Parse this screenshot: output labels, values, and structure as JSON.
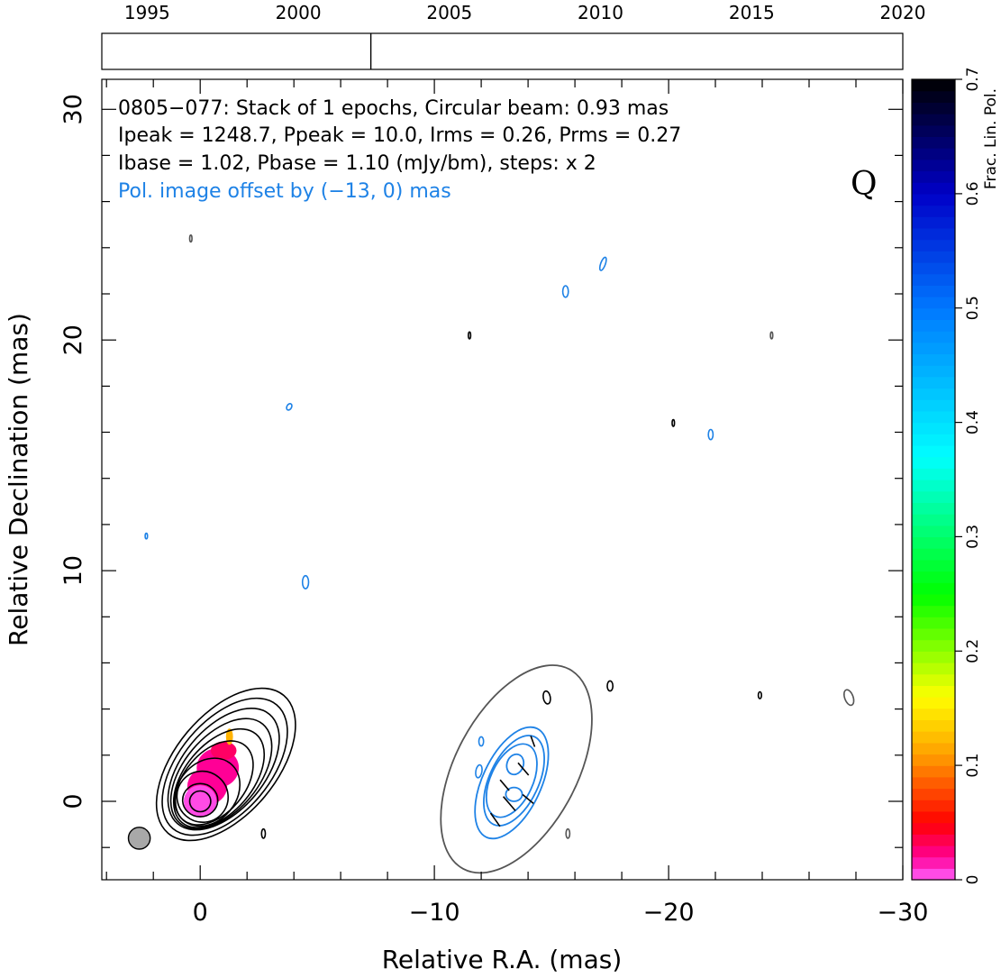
{
  "chart_data": {
    "type": "contour",
    "source": "0805−077",
    "header": {
      "line1": "0805−077: Stack of 1 epochs, Circular beam: 0.93 mas",
      "line2": "Ipeak = 1248.7, Ppeak = 10.0, Irms = 0.26, Prms = 0.27",
      "line3": "Ibase = 1.02, Pbase = 1.10 (mJy/bm), steps: x 2",
      "line4": "Pol. image offset by (−13, 0) mas"
    },
    "quality_flag": "Q",
    "xlabel": "Relative R.A. (mas)",
    "ylabel": "Relative Declination (mas)",
    "colorbar_label": "Frac. Lin. Pol.",
    "xlim": [
      4.2,
      -30
    ],
    "ylim": [
      -3.4,
      31.3
    ],
    "x_ticks": [
      0,
      -10,
      -20,
      -30
    ],
    "x_tick_labels": [
      "0",
      "−10",
      "−20",
      "−30"
    ],
    "y_ticks": [
      0,
      10,
      20,
      30
    ],
    "y_tick_labels": [
      "0",
      "10",
      "20",
      "30"
    ],
    "colorbar": {
      "range": [
        0,
        0.7
      ],
      "ticks": [
        0,
        0.1,
        0.2,
        0.3,
        0.4,
        0.5,
        0.6,
        0.7
      ],
      "tick_labels": [
        "0",
        "0.1",
        "0.2",
        "0.3",
        "0.4",
        "0.5",
        "0.6",
        "0.7"
      ]
    },
    "epoch_axis": {
      "range": [
        1993.5,
        2020
      ],
      "ticks": [
        1995,
        2000,
        2005,
        2010,
        2015,
        2020
      ],
      "tick_labels": [
        "1995",
        "2000",
        "2005",
        "2010",
        "2015",
        "2020"
      ],
      "epochs": [
        2002.4
      ]
    },
    "beam_fwhm_mas": 0.93,
    "colors": {
      "stokes_i": "#000000",
      "pol_intensity": "#1e82e6",
      "pol_outer": "#555555",
      "beam_fill": "#a8a8a8"
    },
    "core_contours": [
      {
        "x": 0,
        "y": 0,
        "rx": 0.45,
        "ry": 0.45,
        "rot": 0
      },
      {
        "x": 0,
        "y": 0.05,
        "rx": 0.75,
        "ry": 0.72,
        "rot": 0
      },
      {
        "x": -0.1,
        "y": 0.2,
        "rx": 1.1,
        "ry": 1.1,
        "rot": 40
      },
      {
        "x": -0.3,
        "y": 0.4,
        "rx": 1.25,
        "ry": 1.6,
        "rot": 40
      },
      {
        "x": -0.6,
        "y": 0.8,
        "rx": 1.3,
        "ry": 2.1,
        "rot": 40
      },
      {
        "x": -0.8,
        "y": 1.0,
        "rx": 1.45,
        "ry": 2.5,
        "rot": 40
      },
      {
        "x": -0.9,
        "y": 1.2,
        "rx": 1.6,
        "ry": 2.8,
        "rot": 40
      },
      {
        "x": -1.0,
        "y": 1.4,
        "rx": 1.75,
        "ry": 3.1,
        "rot": 40
      },
      {
        "x": -1.05,
        "y": 1.5,
        "rx": 1.95,
        "ry": 3.5,
        "rot": 40
      },
      {
        "x": -1.1,
        "y": 1.6,
        "rx": 2.15,
        "ry": 3.9,
        "rot": 40
      }
    ],
    "pol_contours": [
      {
        "x": -13.4,
        "y": 0.3,
        "rx": 0.35,
        "ry": 0.3,
        "rot": 0
      },
      {
        "x": -13.45,
        "y": 1.6,
        "rx": 0.35,
        "ry": 0.45,
        "rot": 20
      },
      {
        "x": -13.3,
        "y": 0.9,
        "rx": 0.9,
        "ry": 1.7,
        "rot": 25
      },
      {
        "x": -13.4,
        "y": 0.9,
        "rx": 1.05,
        "ry": 2.1,
        "rot": 25
      },
      {
        "x": -13.3,
        "y": 0.8,
        "rx": 1.25,
        "ry": 2.6,
        "rot": 25
      }
    ],
    "pol_outer_contour": {
      "x": -13.5,
      "y": 1.4,
      "rx": 2.6,
      "ry": 4.9,
      "rot": 28
    },
    "evpa_ticks": [
      {
        "x": -12.6,
        "y": -0.8,
        "len": 0.7,
        "pa": -35
      },
      {
        "x": -13.2,
        "y": -0.1,
        "len": 0.8,
        "pa": -40
      },
      {
        "x": -13.0,
        "y": 0.7,
        "len": 0.6,
        "pa": -40
      },
      {
        "x": -14.0,
        "y": 0.1,
        "len": 0.6,
        "pa": -50
      },
      {
        "x": -13.8,
        "y": 1.4,
        "len": 0.7,
        "pa": -40
      },
      {
        "x": -14.2,
        "y": 2.6,
        "len": 0.5,
        "pa": -20
      }
    ],
    "small_features": [
      {
        "x": 0.4,
        "y": 24.4,
        "rx": 0.05,
        "ry": 0.15,
        "rot": 0,
        "color": "#555555"
      },
      {
        "x": -11.5,
        "y": 20.2,
        "rx": 0.05,
        "ry": 0.15,
        "rot": 0,
        "color": "#000000"
      },
      {
        "x": -24.4,
        "y": 20.2,
        "rx": 0.05,
        "ry": 0.15,
        "rot": 0,
        "color": "#555555"
      },
      {
        "x": -20.2,
        "y": 16.4,
        "rx": 0.05,
        "ry": 0.15,
        "rot": 0,
        "color": "#000000"
      },
      {
        "x": -3.8,
        "y": 17.1,
        "rx": 0.1,
        "ry": 0.15,
        "rot": 30,
        "color": "#1e82e6"
      },
      {
        "x": -15.6,
        "y": 22.1,
        "rx": 0.12,
        "ry": 0.25,
        "rot": 0,
        "color": "#1e82e6"
      },
      {
        "x": -17.2,
        "y": 23.3,
        "rx": 0.1,
        "ry": 0.3,
        "rot": 20,
        "color": "#1e82e6"
      },
      {
        "x": -21.8,
        "y": 15.9,
        "rx": 0.1,
        "ry": 0.22,
        "rot": 0,
        "color": "#1e82e6"
      },
      {
        "x": 2.3,
        "y": 11.5,
        "rx": 0.05,
        "ry": 0.12,
        "rot": 0,
        "color": "#1e82e6"
      },
      {
        "x": -4.5,
        "y": 9.5,
        "rx": 0.13,
        "ry": 0.28,
        "rot": 0,
        "color": "#1e82e6"
      },
      {
        "x": -14.8,
        "y": 4.5,
        "rx": 0.15,
        "ry": 0.28,
        "rot": -10,
        "color": "#000000"
      },
      {
        "x": -17.5,
        "y": 5.0,
        "rx": 0.12,
        "ry": 0.22,
        "rot": 0,
        "color": "#000000"
      },
      {
        "x": -23.9,
        "y": 4.6,
        "rx": 0.07,
        "ry": 0.15,
        "rot": 0,
        "color": "#000000"
      },
      {
        "x": -27.7,
        "y": 4.5,
        "rx": 0.18,
        "ry": 0.35,
        "rot": -20,
        "color": "#555555"
      },
      {
        "x": -2.7,
        "y": -1.4,
        "rx": 0.08,
        "ry": 0.2,
        "rot": 0,
        "color": "#000000"
      },
      {
        "x": -15.7,
        "y": -1.4,
        "rx": 0.08,
        "ry": 0.2,
        "rot": 0,
        "color": "#555555"
      },
      {
        "x": -11.9,
        "y": 1.3,
        "rx": 0.13,
        "ry": 0.28,
        "rot": 10,
        "color": "#1e82e6"
      },
      {
        "x": -12.0,
        "y": 2.6,
        "rx": 0.1,
        "ry": 0.2,
        "rot": 0,
        "color": "#1e82e6"
      }
    ],
    "fracpol_patches": [
      {
        "x": -0.75,
        "y": 1.45,
        "rx": 0.9,
        "ry": 0.85,
        "rot": 0,
        "value": 0.02
      },
      {
        "x": -0.3,
        "y": 0.65,
        "rx": 0.85,
        "ry": 0.8,
        "rot": 0,
        "value": 0.02
      },
      {
        "x": -1.0,
        "y": 2.2,
        "rx": 0.55,
        "ry": 0.4,
        "rot": 0,
        "value": 0.03
      },
      {
        "x": -1.25,
        "y": 2.8,
        "rx": 0.15,
        "ry": 0.35,
        "rot": 0,
        "value": 0.12
      },
      {
        "x": 0.0,
        "y": 0.0,
        "rx": 0.7,
        "ry": 0.7,
        "rot": 0,
        "value": 0.005
      }
    ]
  }
}
